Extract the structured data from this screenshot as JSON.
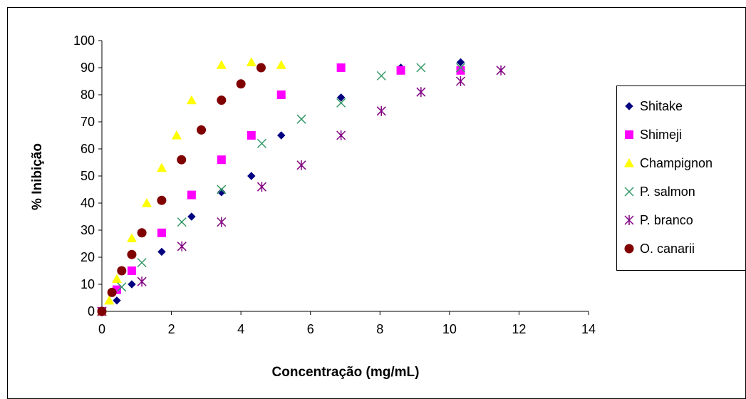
{
  "chart_data": {
    "type": "scatter",
    "title": "",
    "xlabel": "Concentração (mg/mL)",
    "ylabel": "% Inibição",
    "xlim": [
      0,
      14
    ],
    "ylim": [
      0,
      100
    ],
    "xticks": [
      "0",
      "2",
      "4",
      "6",
      "8",
      "10",
      "12",
      "14"
    ],
    "yticks": [
      "0",
      "10",
      "20",
      "30",
      "40",
      "50",
      "60",
      "70",
      "80",
      "90",
      "100"
    ],
    "grid": false,
    "legend_position": "right",
    "series": [
      {
        "name": "Shitake",
        "marker": "diamond",
        "color": "#000080",
        "x": [
          0,
          0.43,
          0.86,
          1.72,
          2.58,
          3.44,
          4.3,
          5.16,
          6.88,
          8.6,
          10.32
        ],
        "y": [
          0,
          4,
          10,
          22,
          35,
          44,
          50,
          65,
          79,
          90,
          92
        ]
      },
      {
        "name": "Shimeji",
        "marker": "square",
        "color": "#FF00FF",
        "x": [
          0,
          0.43,
          0.86,
          1.72,
          2.58,
          3.44,
          4.3,
          5.16,
          6.88,
          8.6,
          10.32
        ],
        "y": [
          0,
          8,
          15,
          29,
          43,
          56,
          65,
          80,
          90,
          89,
          89
        ]
      },
      {
        "name": "Champignon",
        "marker": "triangle",
        "color": "#FFFF00",
        "x": [
          0,
          0.21,
          0.43,
          0.86,
          1.29,
          1.72,
          2.15,
          2.58,
          3.44,
          4.3,
          5.16
        ],
        "y": [
          0,
          4,
          12,
          27,
          40,
          53,
          65,
          78,
          91,
          92,
          91
        ]
      },
      {
        "name": "P. salmon",
        "marker": "x",
        "color": "#339966",
        "x": [
          0,
          0.57,
          1.15,
          2.3,
          3.44,
          4.6,
          5.74,
          6.88,
          8.04,
          9.18,
          10.32
        ],
        "y": [
          0,
          9,
          18,
          33,
          45,
          62,
          71,
          77,
          87,
          90,
          90
        ]
      },
      {
        "name": "P. branco",
        "marker": "star",
        "color": "#800080",
        "x": [
          0,
          1.15,
          2.3,
          3.44,
          4.6,
          5.74,
          6.88,
          8.04,
          9.18,
          10.32,
          11.48
        ],
        "y": [
          0,
          11,
          24,
          33,
          46,
          54,
          65,
          74,
          81,
          85,
          89
        ]
      },
      {
        "name": "O. canarii",
        "marker": "circle",
        "color": "#800000",
        "x": [
          0,
          0.29,
          0.57,
          0.86,
          1.15,
          1.72,
          2.29,
          2.86,
          3.44,
          4.0,
          4.58
        ],
        "y": [
          0,
          7,
          15,
          21,
          29,
          41,
          56,
          67,
          78,
          84,
          90
        ]
      }
    ]
  }
}
